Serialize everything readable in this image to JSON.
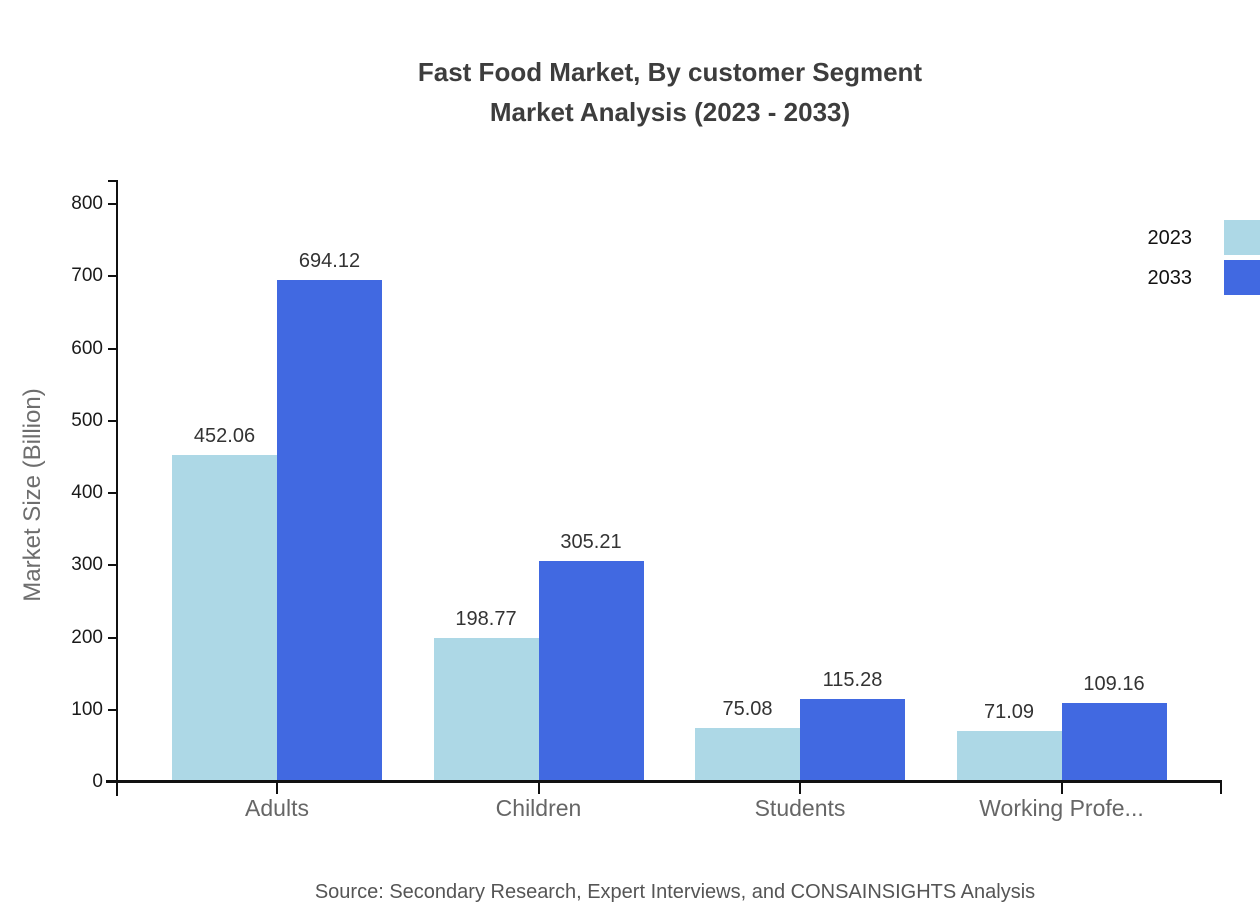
{
  "title": {
    "line1": "Fast Food Market, By customer Segment",
    "line2": "Market Analysis (2023 - 2033)"
  },
  "source": "Source: Secondary Research, Expert Interviews, and CONSAINSIGHTS Analysis",
  "legend": {
    "position": "right-edge",
    "items": [
      {
        "label": "2023",
        "color": "#ADD8E6"
      },
      {
        "label": "2033",
        "color": "#4169E1"
      }
    ]
  },
  "chart_data": {
    "type": "bar",
    "title": "Fast Food Market, By customer Segment Market Analysis (2023 - 2033)",
    "categories": [
      "Adults",
      "Children",
      "Students",
      "Working Profe..."
    ],
    "series": [
      {
        "name": "2023",
        "color": "#ADD8E6",
        "values": [
          452.06,
          198.77,
          75.08,
          71.09
        ]
      },
      {
        "name": "2033",
        "color": "#4169E1",
        "values": [
          694.12,
          305.21,
          115.28,
          109.16
        ]
      }
    ],
    "xlabel": "",
    "ylabel": "Market Size (Billion)",
    "ylim": [
      0,
      800
    ],
    "yticks": [
      0,
      100,
      200,
      300,
      400,
      500,
      600,
      700,
      800
    ],
    "grid": false,
    "value_labels": true,
    "value_label_decimals": 2,
    "legend_position": "upper right"
  },
  "colors": {
    "series_2023": "#ADD8E6",
    "series_2033": "#4169E1",
    "axis": "#111111",
    "title_text": "#3d3d3d",
    "category_text": "#666666",
    "value_text": "#333333",
    "source_text": "#555555"
  }
}
